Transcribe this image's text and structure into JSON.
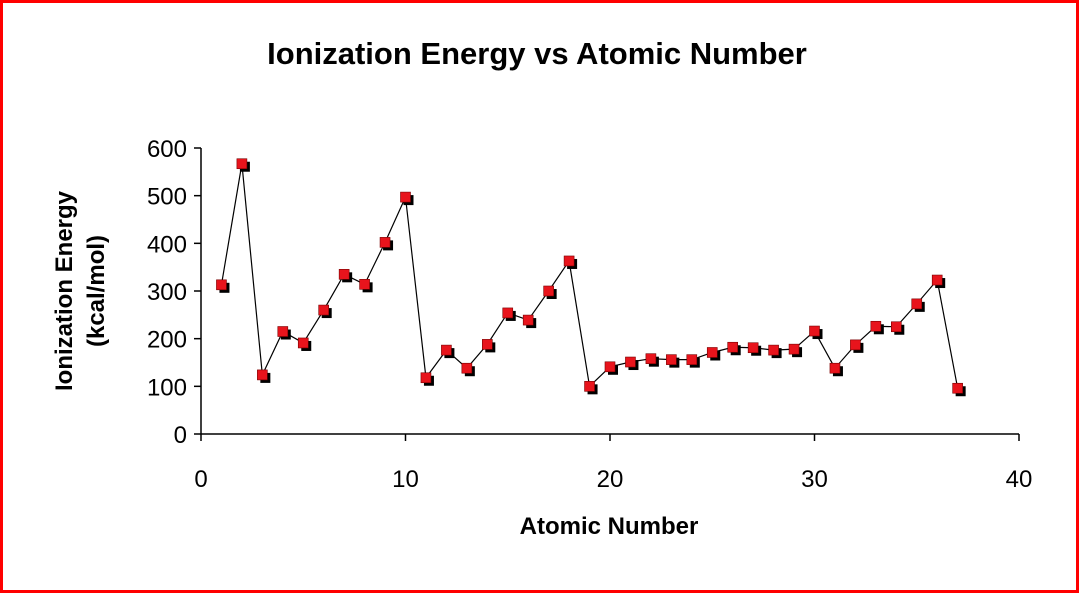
{
  "chart_data": {
    "type": "line",
    "title": "Ionization Energy vs Atomic Number",
    "xlabel": "Atomic Number",
    "ylabel": [
      "Ionization Energy",
      "(kcal/mol)"
    ],
    "xlim": [
      0,
      40
    ],
    "ylim": [
      0,
      600
    ],
    "xticks": [
      0,
      10,
      20,
      30,
      40
    ],
    "yticks": [
      0,
      100,
      200,
      300,
      400,
      500,
      600
    ],
    "grid": false,
    "legend": "none",
    "marker_color": "#e8141c",
    "marker_shadow_color": "#000000",
    "line_color": "#000000",
    "border_color": "#ff0000",
    "series": [
      {
        "x": [
          1,
          2,
          3,
          4,
          5,
          6,
          7,
          8,
          9,
          10,
          11,
          12,
          13,
          14,
          15,
          16,
          17,
          18,
          19,
          20,
          21,
          22,
          23,
          24,
          25,
          26,
          27,
          28,
          29,
          30,
          31,
          32,
          33,
          34,
          35,
          36,
          37
        ],
        "values": [
          313,
          567,
          124,
          215,
          191,
          260,
          335,
          314,
          402,
          497,
          118,
          176,
          138,
          188,
          254,
          239,
          300,
          363,
          100,
          141,
          151,
          158,
          156,
          156,
          171,
          182,
          181,
          176,
          178,
          216,
          138,
          187,
          226,
          225,
          273,
          323,
          96
        ]
      }
    ]
  }
}
